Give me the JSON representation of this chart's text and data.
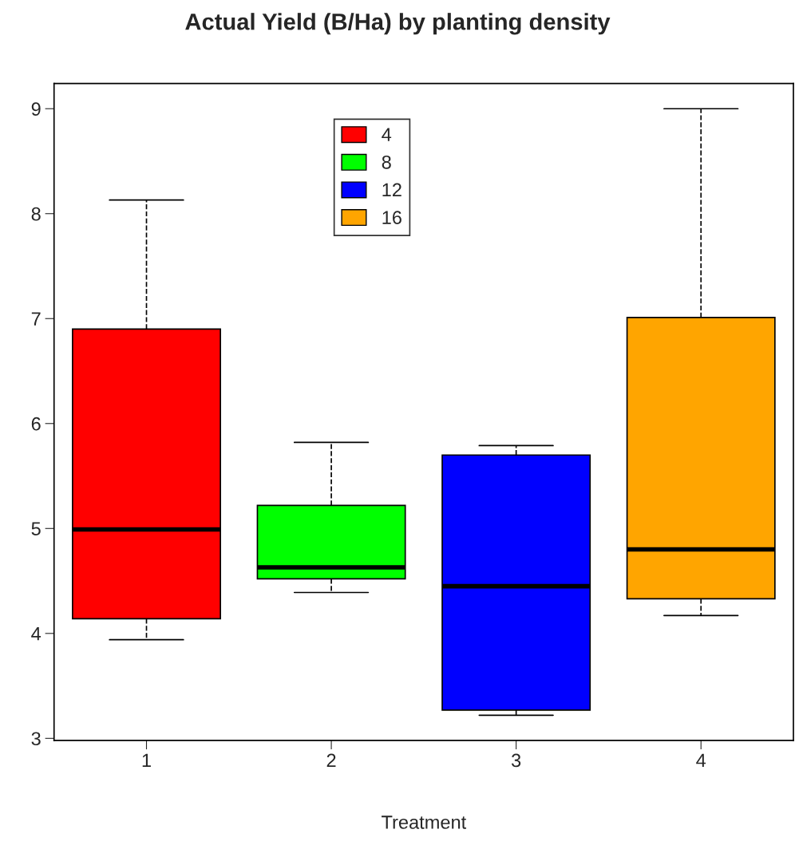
{
  "chart_data": {
    "type": "box",
    "title": "Actual Yield (B/Ha) by planting density",
    "xlabel": "Treatment",
    "categories": [
      "1",
      "2",
      "3",
      "4"
    ],
    "series": [
      {
        "name": "4",
        "color": "#ff0000",
        "boxes": [
          {
            "low": 3.94,
            "q1": 4.14,
            "median": 4.99,
            "q3": 6.9,
            "high": 8.13
          },
          null,
          null,
          null
        ]
      },
      {
        "name": "8",
        "color": "#00ff00",
        "boxes": [
          null,
          {
            "low": 4.39,
            "q1": 4.52,
            "median": 4.63,
            "q3": 5.22,
            "high": 5.82
          },
          null,
          null
        ]
      },
      {
        "name": "12",
        "color": "#0000ff",
        "boxes": [
          null,
          null,
          {
            "low": 3.22,
            "q1": 3.27,
            "median": 4.45,
            "q3": 5.7,
            "high": 5.79
          },
          null
        ]
      },
      {
        "name": "16",
        "color": "#ffa500",
        "boxes": [
          null,
          null,
          null,
          {
            "low": 4.17,
            "q1": 4.33,
            "median": 4.8,
            "q3": 7.01,
            "high": 9
          }
        ]
      }
    ],
    "ylim": [
      2.98,
      9.24
    ],
    "yticks": [
      3,
      4,
      5,
      6,
      7,
      8,
      9
    ],
    "grid": false,
    "legend": "top"
  }
}
